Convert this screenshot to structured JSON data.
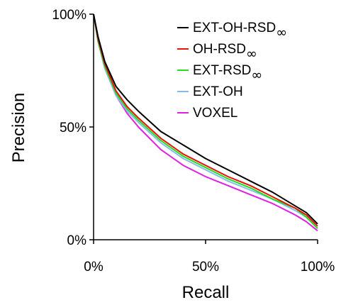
{
  "chart_data": {
    "type": "line",
    "title": "",
    "xlabel": "Recall",
    "ylabel": "Precision",
    "xlim": [
      0,
      100
    ],
    "ylim": [
      0,
      100
    ],
    "x_ticks": [
      0,
      50,
      100
    ],
    "x_tick_labels": [
      "0%",
      "50%",
      "100%"
    ],
    "y_ticks": [
      0,
      50,
      100
    ],
    "y_tick_labels": [
      "0%",
      "50%",
      "100%"
    ],
    "grid": false,
    "legend_position": "top-right",
    "series": [
      {
        "name": "EXT-OH-RSD",
        "name_subscript": "∞",
        "color": "#000000",
        "x": [
          0,
          2,
          5,
          10,
          15,
          20,
          30,
          40,
          50,
          60,
          70,
          80,
          90,
          95,
          100
        ],
        "y": [
          100,
          90,
          79,
          68,
          62,
          57,
          48,
          42,
          36,
          31,
          26,
          21,
          15,
          12,
          7
        ]
      },
      {
        "name": "OH-RSD",
        "name_subscript": "∞",
        "color": "#e8140a",
        "x": [
          0,
          2,
          5,
          10,
          15,
          20,
          30,
          40,
          50,
          60,
          70,
          80,
          90,
          95,
          100
        ],
        "y": [
          100,
          89,
          78,
          66,
          59,
          54,
          45,
          38,
          33,
          28,
          24,
          19,
          14,
          11,
          6
        ]
      },
      {
        "name": "EXT-RSD",
        "name_subscript": "∞",
        "color": "#22dd22",
        "x": [
          0,
          2,
          5,
          10,
          15,
          20,
          30,
          40,
          50,
          60,
          70,
          80,
          90,
          95,
          100
        ],
        "y": [
          100,
          88,
          77,
          65,
          58,
          53,
          44,
          37,
          32,
          27,
          23,
          18,
          14,
          10,
          5
        ]
      },
      {
        "name": "EXT-OH",
        "color": "#88bce8",
        "x": [
          0,
          2,
          5,
          10,
          15,
          20,
          30,
          40,
          50,
          60,
          70,
          80,
          90,
          95,
          100
        ],
        "y": [
          100,
          88,
          76,
          64,
          57,
          52,
          43,
          36,
          31,
          26,
          22,
          18,
          13,
          10,
          5
        ]
      },
      {
        "name": "VOXEL",
        "color": "#e020e0",
        "x": [
          0,
          2,
          5,
          10,
          15,
          20,
          30,
          40,
          50,
          60,
          70,
          80,
          90,
          95,
          100
        ],
        "y": [
          100,
          88,
          76,
          64,
          56,
          50,
          40,
          33,
          28,
          24,
          20,
          16,
          11,
          8,
          4
        ]
      }
    ]
  }
}
